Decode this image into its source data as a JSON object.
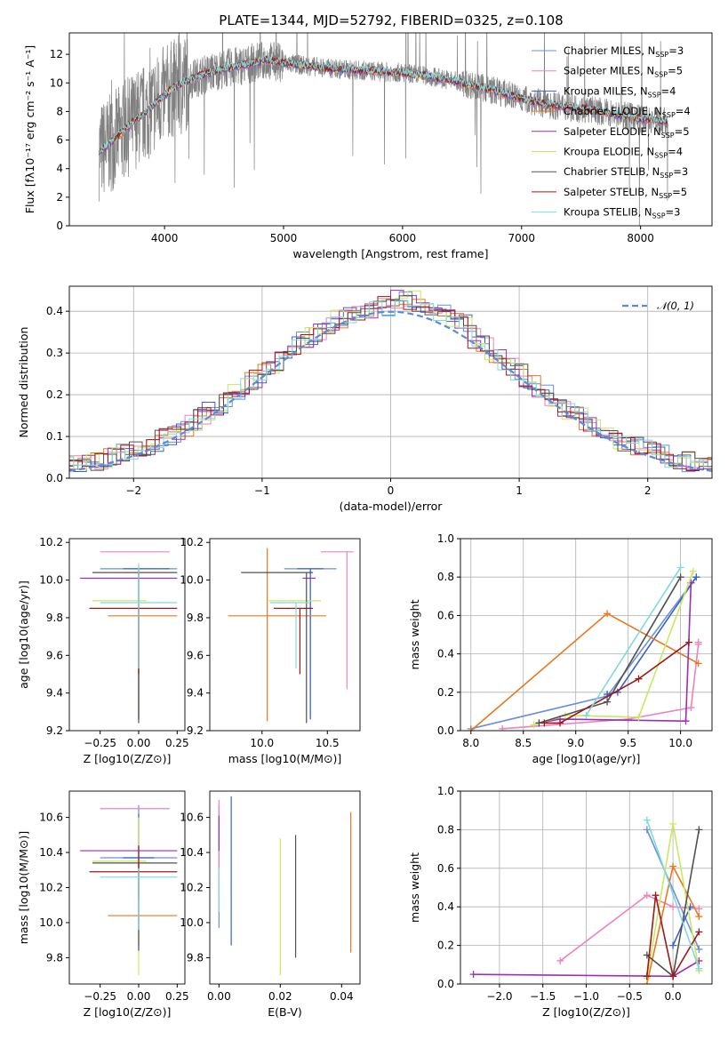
{
  "title": "PLATE=1344, MJD=52792, FIBERID=0325, z=0.108",
  "colors": {
    "chabrier_miles": "#6a8fdc",
    "salpeter_miles": "#f080c0",
    "kroupa_miles": "#3a62c8",
    "chabrier_elodie": "#e87820",
    "salpeter_elodie": "#9a2fb8",
    "kroupa_elodie": "#c8e860",
    "chabrier_stelib": "#505050",
    "salpeter_stelib": "#a01818",
    "kroupa_stelib": "#80d8e0",
    "data": "#808080",
    "normal": "#5b8bd8"
  },
  "chart_data": [
    {
      "type": "line",
      "panel": "spectrum",
      "title": "PLATE=1344, MJD=52792, FIBERID=0325, z=0.108",
      "xlabel": "wavelength [Angstrom, rest frame]",
      "ylabel": "Flux [fλ10⁻¹⁷ erg cm⁻² s⁻¹ A⁻¹]",
      "xlim": [
        3200,
        8600
      ],
      "ylim": [
        0,
        13.5
      ],
      "xticks": [
        "4000",
        "5000",
        "6000",
        "7000",
        "8000"
      ],
      "yticks": [
        "0",
        "2",
        "4",
        "6",
        "8",
        "10",
        "12"
      ],
      "continuum": {
        "x": [
          3450,
          3550,
          3650,
          3750,
          3850,
          3950,
          4050,
          4150,
          4300,
          4500,
          4700,
          4850,
          5000,
          5200,
          5400,
          5600,
          5800,
          6000,
          6200,
          6400,
          6600,
          6800,
          7000,
          7200,
          7400,
          7600,
          7800,
          8000,
          8200
        ],
        "y": [
          5.2,
          5.8,
          6.6,
          7.4,
          8.0,
          8.8,
          9.5,
          10.0,
          10.5,
          11.0,
          11.3,
          11.6,
          11.4,
          11.2,
          11.0,
          10.9,
          10.8,
          10.7,
          10.5,
          10.2,
          9.8,
          9.4,
          8.9,
          8.5,
          8.3,
          8.1,
          7.8,
          7.5,
          7.3
        ]
      },
      "legend": [
        "Chabrier MILES, NSSP=3",
        "Salpeter MILES, NSSP=5",
        "Kroupa MILES, NSSP=4",
        "Chabrier ELODIE, NSSP=4",
        "Salpeter ELODIE, NSSP=5",
        "Kroupa ELODIE, NSSP=4",
        "Chabrier STELIB, NSSP=3",
        "Salpeter STELIB, NSSP=5",
        "Kroupa STELIB, NSSP=3"
      ]
    },
    {
      "type": "line",
      "panel": "residual-histogram",
      "xlabel": "(data-model)/error",
      "ylabel": "Normed distribution",
      "xlim": [
        -2.5,
        2.5
      ],
      "ylim": [
        0,
        0.46
      ],
      "xticks": [
        "−2",
        "−1",
        "0",
        "1",
        "2"
      ],
      "yticks": [
        "0.0",
        "0.1",
        "0.2",
        "0.3",
        "0.4"
      ],
      "legend": [
        "𝒩(0, 1)"
      ]
    },
    {
      "type": "scatter",
      "panel": "Z-age",
      "xlabel": "Z [log10(Z/Z⊙)]",
      "ylabel": "age  [log10(age/yr)]",
      "xlim": [
        -0.45,
        0.3
      ],
      "ylim": [
        9.2,
        10.22
      ],
      "xticks": [
        "−0.25",
        "0.00",
        "0.25"
      ],
      "yticks": [
        "9.2",
        "9.4",
        "9.6",
        "9.8",
        "10.0",
        "10.2"
      ],
      "series": [
        {
          "x": 0.0,
          "y": 10.06,
          "xerr": [
            0.25,
            0.25
          ],
          "yerr": [
            0.8,
            0.0
          ]
        },
        {
          "x": 0.0,
          "y": 10.15,
          "xerr": [
            0.25,
            0.2
          ],
          "yerr": [
            0.0,
            0.0
          ]
        },
        {
          "x": 0.0,
          "y": 10.06,
          "xerr": [
            0.1,
            0.2
          ],
          "yerr": [
            0.8,
            0.0
          ]
        },
        {
          "x": 0.0,
          "y": 9.81,
          "xerr": [
            0.2,
            0.25
          ],
          "yerr": [
            0.55,
            0.0
          ]
        },
        {
          "x": 0.0,
          "y": 10.01,
          "xerr": [
            0.38,
            0.25
          ],
          "yerr": [
            0.0,
            0.0
          ]
        },
        {
          "x": 0.0,
          "y": 9.89,
          "xerr": [
            0.3,
            0.05
          ],
          "yerr": [
            0.6,
            0.2
          ]
        },
        {
          "x": 0.0,
          "y": 10.04,
          "xerr": [
            0.3,
            0.25
          ],
          "yerr": [
            0.8,
            0.0
          ]
        },
        {
          "x": 0.0,
          "y": 9.85,
          "xerr": [
            0.32,
            0.25
          ],
          "yerr": [
            0.35,
            0.0
          ]
        },
        {
          "x": 0.0,
          "y": 9.88,
          "xerr": [
            0.25,
            0.25
          ],
          "yerr": [
            0.35,
            0.2
          ]
        }
      ]
    },
    {
      "type": "scatter",
      "panel": "mass-age",
      "xlabel": "mass [log10(M/M⊙)]",
      "ylabel": "",
      "xlim": [
        9.6,
        10.75
      ],
      "ylim": [
        9.2,
        10.22
      ],
      "xticks": [
        "10.0",
        "10.5"
      ],
      "yticks": [
        "9.2",
        "9.4",
        "9.6",
        "9.8",
        "10.0",
        "10.2"
      ],
      "series": [
        {
          "x": 10.37,
          "y": 10.06,
          "xerr": [
            0.2,
            0.2
          ],
          "yerr": [
            0.8,
            0.0
          ]
        },
        {
          "x": 10.65,
          "y": 10.15,
          "xerr": [
            0.2,
            0.05
          ],
          "yerr": [
            0.73,
            0.0
          ]
        },
        {
          "x": 10.37,
          "y": 10.06,
          "xerr": [
            0.1,
            0.1
          ],
          "yerr": [
            0.8,
            0.0
          ]
        },
        {
          "x": 10.04,
          "y": 9.81,
          "xerr": [
            0.3,
            0.45
          ],
          "yerr": [
            0.56,
            0.36
          ]
        },
        {
          "x": 10.41,
          "y": 10.01,
          "xerr": [
            0.1,
            0.0
          ],
          "yerr": [
            0.0,
            0.0
          ]
        },
        {
          "x": 10.35,
          "y": 9.89,
          "xerr": [
            0.3,
            0.1
          ],
          "yerr": [
            0.0,
            0.0
          ]
        },
        {
          "x": 10.34,
          "y": 10.04,
          "xerr": [
            0.5,
            0.05
          ],
          "yerr": [
            0.8,
            0.0
          ]
        },
        {
          "x": 10.29,
          "y": 9.85,
          "xerr": [
            0.2,
            0.1
          ],
          "yerr": [
            0.35,
            0.0
          ]
        },
        {
          "x": 10.26,
          "y": 9.88,
          "xerr": [
            0.2,
            0.1
          ],
          "yerr": [
            0.35,
            0.0
          ]
        }
      ]
    },
    {
      "type": "line",
      "panel": "age-weight",
      "xlabel": "age  [log10(age/yr)]",
      "ylabel": "mass weight",
      "xlim": [
        7.9,
        10.3
      ],
      "ylim": [
        0,
        1
      ],
      "xticks": [
        "8.0",
        "8.5",
        "9.0",
        "9.5",
        "10.0"
      ],
      "yticks": [
        "0.0",
        "0.2",
        "0.4",
        "0.6",
        "0.8",
        "1.0"
      ],
      "series": [
        {
          "name": "Chabrier MILES",
          "x": [
            8.0,
            9.3,
            10.15
          ],
          "y": [
            0.01,
            0.18,
            0.8
          ]
        },
        {
          "name": "Salpeter MILES",
          "x": [
            8.3,
            9.5,
            10.1,
            10.17,
            10.17
          ],
          "y": [
            0.01,
            0.06,
            0.12,
            0.45,
            0.46
          ]
        },
        {
          "name": "Kroupa MILES",
          "x": [
            9.3,
            9.4,
            10.15
          ],
          "y": [
            0.19,
            0.2,
            0.8
          ]
        },
        {
          "name": "Chabrier ELODIE",
          "x": [
            8.0,
            9.3,
            10.17
          ],
          "y": [
            0.0,
            0.61,
            0.35
          ]
        },
        {
          "name": "Salpeter ELODIE",
          "x": [
            8.65,
            8.85,
            10.05,
            10.1
          ],
          "y": [
            0.04,
            0.06,
            0.05,
            0.77
          ]
        },
        {
          "name": "Kroupa ELODIE",
          "x": [
            8.6,
            8.9,
            9.6,
            10.12
          ],
          "y": [
            0.03,
            0.08,
            0.07,
            0.83
          ]
        },
        {
          "name": "Chabrier STELIB",
          "x": [
            8.65,
            9.3,
            10.0
          ],
          "y": [
            0.04,
            0.15,
            0.8
          ]
        },
        {
          "name": "Salpeter STELIB",
          "x": [
            8.7,
            8.85,
            9.6,
            10.08
          ],
          "y": [
            0.04,
            0.04,
            0.27,
            0.46
          ]
        },
        {
          "name": "Kroupa STELIB",
          "x": [
            9.1,
            10.0
          ],
          "y": [
            0.08,
            0.85
          ]
        }
      ]
    },
    {
      "type": "scatter",
      "panel": "Z-mass",
      "xlabel": "Z [log10(Z/Z⊙)]",
      "ylabel": "mass [log10(M/M⊙)]",
      "xlim": [
        -0.45,
        0.3
      ],
      "ylim": [
        9.65,
        10.75
      ],
      "xticks": [
        "−0.25",
        "0.00",
        "0.25"
      ],
      "yticks": [
        "9.8",
        "10.0",
        "10.2",
        "10.4",
        "10.6"
      ],
      "series": [
        {
          "x": 0.0,
          "y": 10.37,
          "xerr": [
            0.25,
            0.25
          ],
          "yerr": [
            0.4,
            0.3
          ]
        },
        {
          "x": 0.0,
          "y": 10.65,
          "xerr": [
            0.25,
            0.2
          ],
          "yerr": [
            0.0,
            0.0
          ]
        },
        {
          "x": 0.0,
          "y": 10.37,
          "xerr": [
            0.1,
            0.1
          ],
          "yerr": [
            0.5,
            0.25
          ]
        },
        {
          "x": 0.0,
          "y": 10.04,
          "xerr": [
            0.2,
            0.25
          ],
          "yerr": [
            0.0,
            0.0
          ]
        },
        {
          "x": 0.0,
          "y": 10.41,
          "xerr": [
            0.38,
            0.25
          ],
          "yerr": [
            0.0,
            0.0
          ]
        },
        {
          "x": 0.0,
          "y": 10.35,
          "xerr": [
            0.3,
            0.05
          ],
          "yerr": [
            0.65,
            0.25
          ]
        },
        {
          "x": 0.0,
          "y": 10.34,
          "xerr": [
            0.3,
            0.25
          ],
          "yerr": [
            0.5,
            0.0
          ]
        },
        {
          "x": 0.0,
          "y": 10.29,
          "xerr": [
            0.32,
            0.25
          ],
          "yerr": [
            0.15,
            0.15
          ]
        },
        {
          "x": 0.0,
          "y": 10.26,
          "xerr": [
            0.25,
            0.25
          ],
          "yerr": [
            0.3,
            0.05
          ]
        }
      ]
    },
    {
      "type": "scatter",
      "panel": "EBV-mass",
      "xlabel": "E(B-V)",
      "ylabel": "",
      "xlim": [
        -0.003,
        0.046
      ],
      "ylim": [
        9.65,
        10.75
      ],
      "xticks": [
        "0.00",
        "0.02",
        "0.04"
      ],
      "yticks": [
        "9.8",
        "10.0",
        "10.2",
        "10.4",
        "10.6"
      ],
      "series": [
        {
          "x": 0.0,
          "y": 10.37,
          "yerr": [
            0.4,
            0.3
          ]
        },
        {
          "x": 0.0,
          "y": 10.5,
          "yerr": [
            0.35,
            0.2
          ]
        },
        {
          "x": 0.004,
          "y": 10.37,
          "yerr": [
            0.5,
            0.35
          ]
        },
        {
          "x": 0.043,
          "y": 10.2,
          "yerr": [
            0.37,
            0.43
          ]
        },
        {
          "x": 0.0,
          "y": 10.41,
          "yerr": [
            0.0,
            0.2
          ]
        },
        {
          "x": 0.02,
          "y": 10.1,
          "yerr": [
            0.4,
            0.38
          ]
        },
        {
          "x": 0.025,
          "y": 10.2,
          "yerr": [
            0.4,
            0.3
          ]
        },
        {
          "x": 0.0,
          "y": 10.3,
          "yerr": [
            0.0,
            0.0
          ]
        },
        {
          "x": 0.0,
          "y": 10.26,
          "yerr": [
            0.2,
            0.05
          ]
        }
      ]
    },
    {
      "type": "line",
      "panel": "Z-weight",
      "xlabel": "Z [log10(Z/Z⊙)]",
      "ylabel": "mass weight",
      "xlim": [
        -2.45,
        0.45
      ],
      "ylim": [
        0,
        1
      ],
      "xticks": [
        "−2.0",
        "−1.5",
        "−1.0",
        "−0.5",
        "0.0"
      ],
      "yticks": [
        "0.0",
        "0.2",
        "0.4",
        "0.6",
        "0.8",
        "1.0"
      ],
      "series": [
        {
          "name": "Chabrier MILES",
          "x": [
            -0.3,
            0.3
          ],
          "y": [
            0.8,
            0.18
          ]
        },
        {
          "name": "Salpeter MILES",
          "x": [
            -1.3,
            -0.3,
            0.0,
            0.3
          ],
          "y": [
            0.12,
            0.46,
            0.4,
            0.39
          ]
        },
        {
          "name": "Kroupa MILES",
          "x": [
            0.0,
            0.2
          ],
          "y": [
            0.2,
            0.4
          ]
        },
        {
          "name": "Chabrier ELODIE",
          "x": [
            -0.3,
            0.0,
            0.3
          ],
          "y": [
            0.0,
            0.61,
            0.35
          ]
        },
        {
          "name": "Salpeter ELODIE",
          "x": [
            -2.3,
            0.0,
            0.3
          ],
          "y": [
            0.05,
            0.04,
            0.12
          ]
        },
        {
          "name": "Kroupa ELODIE",
          "x": [
            -0.3,
            0.0,
            0.3
          ],
          "y": [
            0.03,
            0.83,
            0.07
          ]
        },
        {
          "name": "Chabrier STELIB",
          "x": [
            -0.3,
            0.0,
            0.3
          ],
          "y": [
            0.15,
            0.04,
            0.8
          ]
        },
        {
          "name": "Salpeter STELIB",
          "x": [
            -0.3,
            -0.2,
            0.0,
            0.3
          ],
          "y": [
            0.04,
            0.46,
            0.04,
            0.27
          ]
        },
        {
          "name": "Kroupa STELIB",
          "x": [
            -0.3,
            0.3
          ],
          "y": [
            0.85,
            0.08
          ]
        }
      ]
    }
  ]
}
